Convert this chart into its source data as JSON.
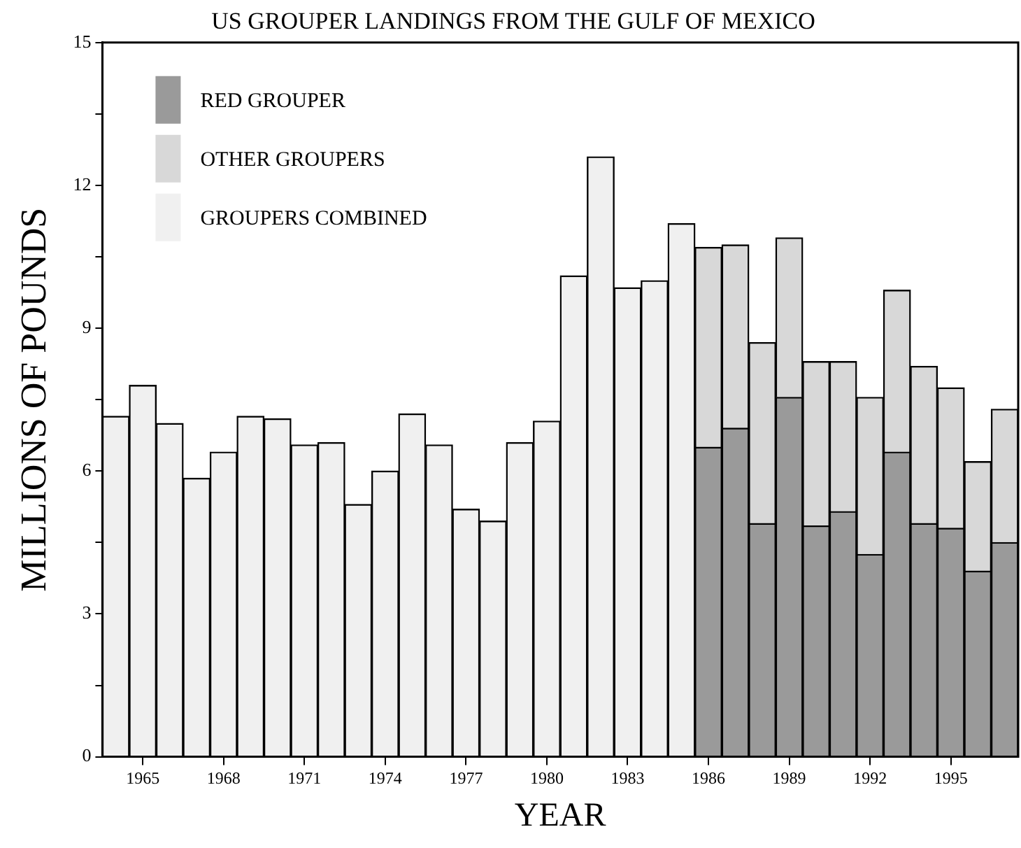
{
  "chart_data": {
    "type": "bar",
    "title": "US GROUPER LANDINGS FROM THE GULF OF MEXICO",
    "xlabel": "YEAR",
    "ylabel": "MILLIONS OF POUNDS",
    "categories": [
      null,
      "1965",
      null,
      null,
      "1968",
      null,
      null,
      "1971",
      null,
      null,
      "1974",
      null,
      null,
      "1977",
      null,
      null,
      "1980",
      null,
      null,
      "1983",
      null,
      null,
      "1986",
      null,
      null,
      "1989",
      null,
      null,
      "1992",
      null,
      null,
      "1995",
      null,
      null
    ],
    "series": [
      {
        "name": "RED GROUPER",
        "color": "#9a9a9a",
        "values": [
          null,
          null,
          null,
          null,
          null,
          null,
          null,
          null,
          null,
          null,
          null,
          null,
          null,
          null,
          null,
          null,
          null,
          null,
          null,
          null,
          null,
          null,
          6.5,
          6.9,
          4.9,
          7.55,
          4.85,
          5.15,
          4.25,
          6.4,
          4.9,
          4.8,
          3.9,
          4.5
        ]
      },
      {
        "name": "OTHER GROUPERS",
        "color": "#d8d8d8",
        "values": [
          null,
          null,
          null,
          null,
          null,
          null,
          null,
          null,
          null,
          null,
          null,
          null,
          null,
          null,
          null,
          null,
          null,
          null,
          null,
          null,
          null,
          null,
          4.2,
          3.85,
          3.8,
          3.35,
          3.45,
          3.15,
          3.3,
          3.4,
          3.3,
          2.95,
          2.3,
          2.8
        ]
      },
      {
        "name": "GROUPERS COMBINED",
        "color": "#f0f0f0",
        "values": [
          7.15,
          7.8,
          7.0,
          5.85,
          6.4,
          7.15,
          7.1,
          6.55,
          6.6,
          5.3,
          6.0,
          7.2,
          6.55,
          5.2,
          4.95,
          6.6,
          7.05,
          10.1,
          12.6,
          9.85,
          10.0,
          11.2,
          null,
          null,
          null,
          null,
          null,
          null,
          null,
          null,
          null,
          null,
          null,
          null
        ]
      }
    ],
    "stacked": true,
    "ylim": [
      0,
      15
    ],
    "yticks": [
      0,
      {
        "value": 1.5,
        "label": null
      },
      3,
      {
        "value": 4.5,
        "label": null
      },
      6,
      {
        "value": 7.5,
        "label": null
      },
      9,
      {
        "value": 10.5,
        "label": null
      },
      12,
      {
        "value": 13.5,
        "label": null
      },
      15
    ],
    "grid": false,
    "legend": "top left"
  }
}
